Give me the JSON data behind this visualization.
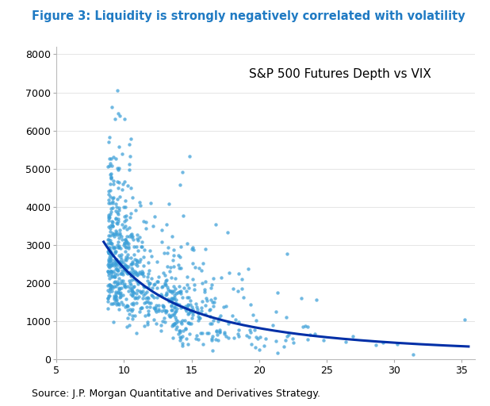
{
  "title": "Figure 3: Liquidity is strongly negatively correlated with volatility",
  "title_color": "#1F7AC3",
  "title_fontsize": 10.5,
  "annotation": "S&P 500 Futures Depth vs VIX",
  "annotation_fontsize": 11,
  "source_text": "Source: J.P. Morgan Quantitative and Derivatives Strategy.",
  "source_fontsize": 9,
  "dot_color": "#3A9FD8",
  "curve_color": "#002FA7",
  "xlim": [
    5,
    36
  ],
  "ylim": [
    0,
    8200
  ],
  "xticks": [
    5,
    10,
    15,
    20,
    25,
    30,
    35
  ],
  "yticks": [
    0,
    1000,
    2000,
    3000,
    4000,
    5000,
    6000,
    7000,
    8000
  ],
  "curve_a": 85000,
  "curve_b": -1.55,
  "seed": 42,
  "n_points": 800,
  "figsize": [
    6.18,
    5.12
  ],
  "dpi": 100
}
